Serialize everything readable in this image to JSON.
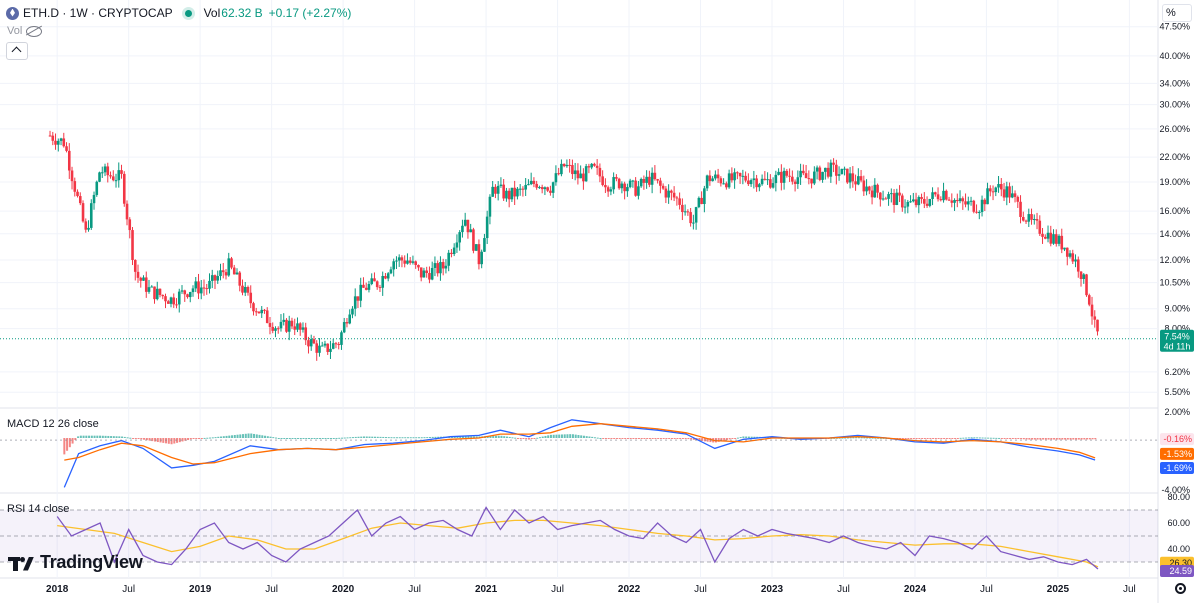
{
  "header": {
    "symbol": "ETH.D · 1W · CRYPTOCAP",
    "vol_label": "Vol",
    "vol_value": "62.32 B",
    "change": "+0.17 (+2.27%)",
    "vol_indicator": "Vol",
    "percent_toggle": "%"
  },
  "icons": [
    "eth-icon",
    "live-dot-icon",
    "eye-hidden-icon",
    "chevron-up-icon",
    "gear-icon",
    "tradingview-logo"
  ],
  "colors": {
    "up": "#089981",
    "down": "#f23645",
    "macd": "#2962ff",
    "signal": "#ff6d00",
    "rsi": "#7e57c2",
    "rsi_ma": "#fbc02d",
    "last_price": "#089981"
  },
  "branding": {
    "logo_text": "TradingView"
  },
  "chart_data": [
    {
      "type": "candlestick",
      "title": "ETH.D · 1W · CRYPTOCAP",
      "y_scale": "log",
      "ylim": [
        5.1,
        50
      ],
      "y_ticks": [
        "47.50%",
        "40.00%",
        "34.00%",
        "30.00%",
        "26.00%",
        "22.00%",
        "19.00%",
        "16.00%",
        "14.00%",
        "12.00%",
        "10.50%",
        "9.00%",
        "8.00%",
        "6.20%",
        "5.50%"
      ],
      "x_ticks": [
        "2018",
        "Jul",
        "2019",
        "Jul",
        "2020",
        "Jul",
        "2021",
        "Jul",
        "2022",
        "Jul",
        "2023",
        "Jul",
        "2024",
        "Jul",
        "2025",
        "Jul"
      ],
      "last_price_label": "7.54%",
      "countdown_label": "4d 11h",
      "x": [
        2017.95,
        2018.05,
        2018.2,
        2018.3,
        2018.35,
        2018.45,
        2018.55,
        2018.65,
        2018.8,
        2018.95,
        2019.05,
        2019.2,
        2019.35,
        2019.45,
        2019.55,
        2019.65,
        2019.75,
        2019.85,
        2019.97,
        2020.05,
        2020.15,
        2020.25,
        2020.35,
        2020.45,
        2020.55,
        2020.7,
        2020.85,
        2020.95,
        2021.05,
        2021.15,
        2021.25,
        2021.35,
        2021.45,
        2021.55,
        2021.65,
        2021.75,
        2021.85,
        2021.95,
        2022.05,
        2022.15,
        2022.25,
        2022.35,
        2022.45,
        2022.55,
        2022.7,
        2022.85,
        2022.95,
        2023.1,
        2023.25,
        2023.4,
        2023.55,
        2023.65,
        2023.8,
        2023.95,
        2024.05,
        2024.2,
        2024.3,
        2024.45,
        2024.55,
        2024.65,
        2024.8,
        2024.95,
        2025.05,
        2025.15,
        2025.22,
        2025.26,
        2025.29
      ],
      "close": [
        25,
        24,
        14,
        20.5,
        19.8,
        19.5,
        11,
        10,
        9.5,
        10.2,
        10.2,
        11.6,
        9.4,
        8.6,
        8,
        8.3,
        7.5,
        7,
        7.4,
        9.2,
        10.2,
        10.5,
        12,
        12,
        11,
        11.5,
        15.5,
        12,
        18.5,
        17.5,
        18,
        19,
        18.5,
        21,
        19.5,
        20.5,
        18.8,
        19,
        18.2,
        19.5,
        18,
        17,
        15,
        19.5,
        19.2,
        19.5,
        19,
        19.8,
        19.4,
        20.5,
        19.5,
        18.5,
        17.5,
        16.7,
        16.8,
        18,
        16.8,
        16.5,
        18.5,
        18,
        15,
        13.8,
        13,
        11.5,
        9.5,
        8,
        7.54
      ],
      "marks": "candles"
    },
    {
      "type": "line",
      "title": "MACD 12 26 close",
      "ylim": [
        -4.0,
        2.0
      ],
      "y_ticks": [
        "2.00%",
        "-4.00%"
      ],
      "labels": {
        "histogram": "-0.16%",
        "signal": "-1.53%",
        "macd": "-1.69%"
      },
      "series": [
        {
          "name": "MACD",
          "x": [
            2018.05,
            2018.15,
            2018.3,
            2018.45,
            2018.6,
            2018.8,
            2018.95,
            2019.1,
            2019.35,
            2019.55,
            2019.75,
            2019.95,
            2020.15,
            2020.35,
            2020.55,
            2020.75,
            2020.95,
            2021.1,
            2021.3,
            2021.45,
            2021.6,
            2021.8,
            2022.0,
            2022.2,
            2022.4,
            2022.6,
            2022.8,
            2023.0,
            2023.2,
            2023.4,
            2023.6,
            2023.8,
            2024.0,
            2024.2,
            2024.4,
            2024.6,
            2024.8,
            2025.0,
            2025.15,
            2025.26
          ],
          "values": [
            -3.8,
            -1.2,
            -0.6,
            -0.2,
            -0.8,
            -2.3,
            -2.1,
            -1.8,
            -0.6,
            -0.9,
            -0.8,
            -0.9,
            -0.5,
            -0.4,
            -0.2,
            0.1,
            0.2,
            0.6,
            0.1,
            0.8,
            1.4,
            1.1,
            0.8,
            0.6,
            0.3,
            -0.8,
            -0.1,
            0.1,
            -0.1,
            0.0,
            0.2,
            0.0,
            -0.3,
            -0.4,
            -0.1,
            -0.3,
            -0.7,
            -1.0,
            -1.3,
            -1.69
          ]
        },
        {
          "name": "Signal",
          "x": [
            2018.05,
            2018.15,
            2018.3,
            2018.45,
            2018.6,
            2018.8,
            2018.95,
            2019.1,
            2019.35,
            2019.55,
            2019.75,
            2019.95,
            2020.15,
            2020.35,
            2020.55,
            2020.75,
            2020.95,
            2021.1,
            2021.3,
            2021.45,
            2021.6,
            2021.8,
            2022.0,
            2022.2,
            2022.4,
            2022.6,
            2022.8,
            2023.0,
            2023.2,
            2023.4,
            2023.6,
            2023.8,
            2024.0,
            2024.2,
            2024.4,
            2024.6,
            2024.8,
            2025.0,
            2025.15,
            2025.26
          ],
          "values": [
            -1.7,
            -1.5,
            -0.9,
            -0.4,
            -0.6,
            -1.5,
            -2.0,
            -1.9,
            -1.2,
            -0.9,
            -0.8,
            -0.9,
            -0.7,
            -0.5,
            -0.3,
            -0.1,
            0.0,
            0.3,
            0.3,
            0.4,
            0.9,
            1.1,
            0.9,
            0.7,
            0.4,
            -0.2,
            -0.3,
            0.0,
            0.0,
            0.0,
            0.1,
            0.0,
            -0.2,
            -0.3,
            -0.2,
            -0.3,
            -0.5,
            -0.8,
            -1.1,
            -1.53
          ]
        }
      ]
    },
    {
      "type": "line",
      "title": "RSI 14 close",
      "ylim": [
        20,
        80
      ],
      "y_ticks": [
        "80.00",
        "60.00",
        "40.00"
      ],
      "band": [
        30,
        70
      ],
      "labels": {
        "rsi_ma": "26.30",
        "rsi": "24.59"
      },
      "series": [
        {
          "name": "RSI",
          "x": [
            2018.0,
            2018.1,
            2018.2,
            2018.3,
            2018.4,
            2018.5,
            2018.6,
            2018.7,
            2018.8,
            2018.9,
            2019.0,
            2019.1,
            2019.2,
            2019.3,
            2019.4,
            2019.5,
            2019.6,
            2019.7,
            2019.8,
            2019.9,
            2020.0,
            2020.1,
            2020.2,
            2020.3,
            2020.4,
            2020.5,
            2020.6,
            2020.7,
            2020.8,
            2020.9,
            2021.0,
            2021.1,
            2021.2,
            2021.3,
            2021.4,
            2021.5,
            2021.6,
            2021.7,
            2021.8,
            2021.9,
            2022.0,
            2022.1,
            2022.2,
            2022.3,
            2022.4,
            2022.5,
            2022.6,
            2022.7,
            2022.8,
            2022.9,
            2023.0,
            2023.1,
            2023.2,
            2023.3,
            2023.4,
            2023.5,
            2023.6,
            2023.7,
            2023.8,
            2023.9,
            2024.0,
            2024.1,
            2024.2,
            2024.3,
            2024.4,
            2024.5,
            2024.6,
            2024.7,
            2024.8,
            2024.9,
            2025.0,
            2025.1,
            2025.2,
            2025.28
          ],
          "values": [
            65,
            50,
            55,
            60,
            30,
            55,
            35,
            30,
            28,
            40,
            55,
            60,
            45,
            40,
            45,
            35,
            30,
            40,
            45,
            50,
            60,
            70,
            50,
            60,
            65,
            55,
            60,
            62,
            55,
            50,
            72,
            55,
            70,
            60,
            65,
            55,
            58,
            60,
            62,
            55,
            50,
            48,
            60,
            50,
            45,
            55,
            30,
            48,
            55,
            50,
            55,
            52,
            50,
            48,
            45,
            50,
            45,
            42,
            40,
            45,
            35,
            50,
            48,
            45,
            40,
            50,
            38,
            35,
            32,
            34,
            30,
            28,
            32,
            24.59
          ]
        },
        {
          "name": "RSI MA",
          "x": [
            2018.0,
            2018.2,
            2018.4,
            2018.6,
            2018.8,
            2019.0,
            2019.2,
            2019.4,
            2019.6,
            2019.8,
            2020.0,
            2020.2,
            2020.4,
            2020.6,
            2020.8,
            2021.0,
            2021.2,
            2021.4,
            2021.6,
            2021.8,
            2022.0,
            2022.2,
            2022.4,
            2022.6,
            2022.8,
            2023.0,
            2023.2,
            2023.4,
            2023.6,
            2023.8,
            2024.0,
            2024.2,
            2024.4,
            2024.6,
            2024.8,
            2025.0,
            2025.2,
            2025.28
          ],
          "values": [
            58,
            55,
            52,
            45,
            38,
            42,
            50,
            47,
            40,
            40,
            48,
            56,
            60,
            58,
            56,
            60,
            62,
            62,
            60,
            58,
            55,
            52,
            50,
            47,
            48,
            50,
            51,
            50,
            47,
            45,
            43,
            44,
            44,
            42,
            38,
            34,
            30,
            26.3
          ]
        }
      ]
    }
  ]
}
